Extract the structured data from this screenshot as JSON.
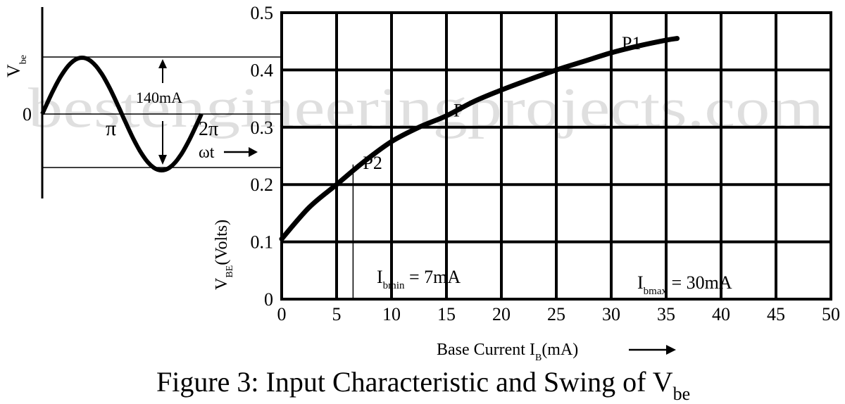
{
  "watermark": "bestengineeringprojects.com",
  "caption": {
    "main": "Figure 3: Input Characteristic and Swing of V",
    "sub": "be"
  },
  "chart_data": [
    {
      "type": "line",
      "name": "input-characteristic",
      "xlabel_main": "Base Current I",
      "xlabel_sub": "B",
      "xlabel_tail": "(mA)",
      "ylabel_main": "V",
      "ylabel_sub": "BE",
      "ylabel_tail": "(Volts)",
      "xlim": [
        0,
        50
      ],
      "ylim": [
        0,
        0.5
      ],
      "x_ticks": [
        0,
        5,
        10,
        15,
        20,
        25,
        30,
        35,
        40,
        45,
        50
      ],
      "x_tick_labels": [
        "0",
        "5",
        "10",
        "15",
        "20",
        "25",
        "30",
        "35",
        "40",
        "45",
        "50"
      ],
      "y_ticks": [
        0,
        0.1,
        0.2,
        0.3,
        0.4,
        0.5
      ],
      "y_tick_labels": [
        "0",
        "0.1",
        "0.2",
        "0.3",
        "0.4",
        "0.5"
      ],
      "grid": true,
      "series": [
        {
          "x": [
            0,
            2.5,
            5,
            7.5,
            10,
            12.5,
            15,
            17.5,
            20,
            22.5,
            25,
            27.5,
            30,
            32.5,
            35,
            36
          ],
          "y": [
            0.105,
            0.16,
            0.2,
            0.24,
            0.275,
            0.3,
            0.32,
            0.345,
            0.365,
            0.383,
            0.4,
            0.415,
            0.43,
            0.442,
            0.452,
            0.455
          ]
        }
      ],
      "points": [
        {
          "label": "P1",
          "x": 30,
          "y": 0.43
        },
        {
          "label": "P",
          "x": 15,
          "y": 0.325
        },
        {
          "label": "P2",
          "x": 6.5,
          "y": 0.23
        }
      ],
      "annotations": [
        {
          "main": "I",
          "sub": "bmin",
          "tail": " = 7mA"
        },
        {
          "main": "I",
          "sub": "bmax",
          "tail": " = 30mA"
        }
      ]
    },
    {
      "type": "line",
      "name": "vbe-swing",
      "ylabel_main": "V",
      "ylabel_sub": "be",
      "xlabel": "ωt",
      "origin_label": "0",
      "x_tick_labels": [
        "π",
        "2π"
      ],
      "amplitude_label": "140mA",
      "series": [
        {
          "description_of_shape": "sine",
          "cycles": 1
        }
      ]
    }
  ]
}
